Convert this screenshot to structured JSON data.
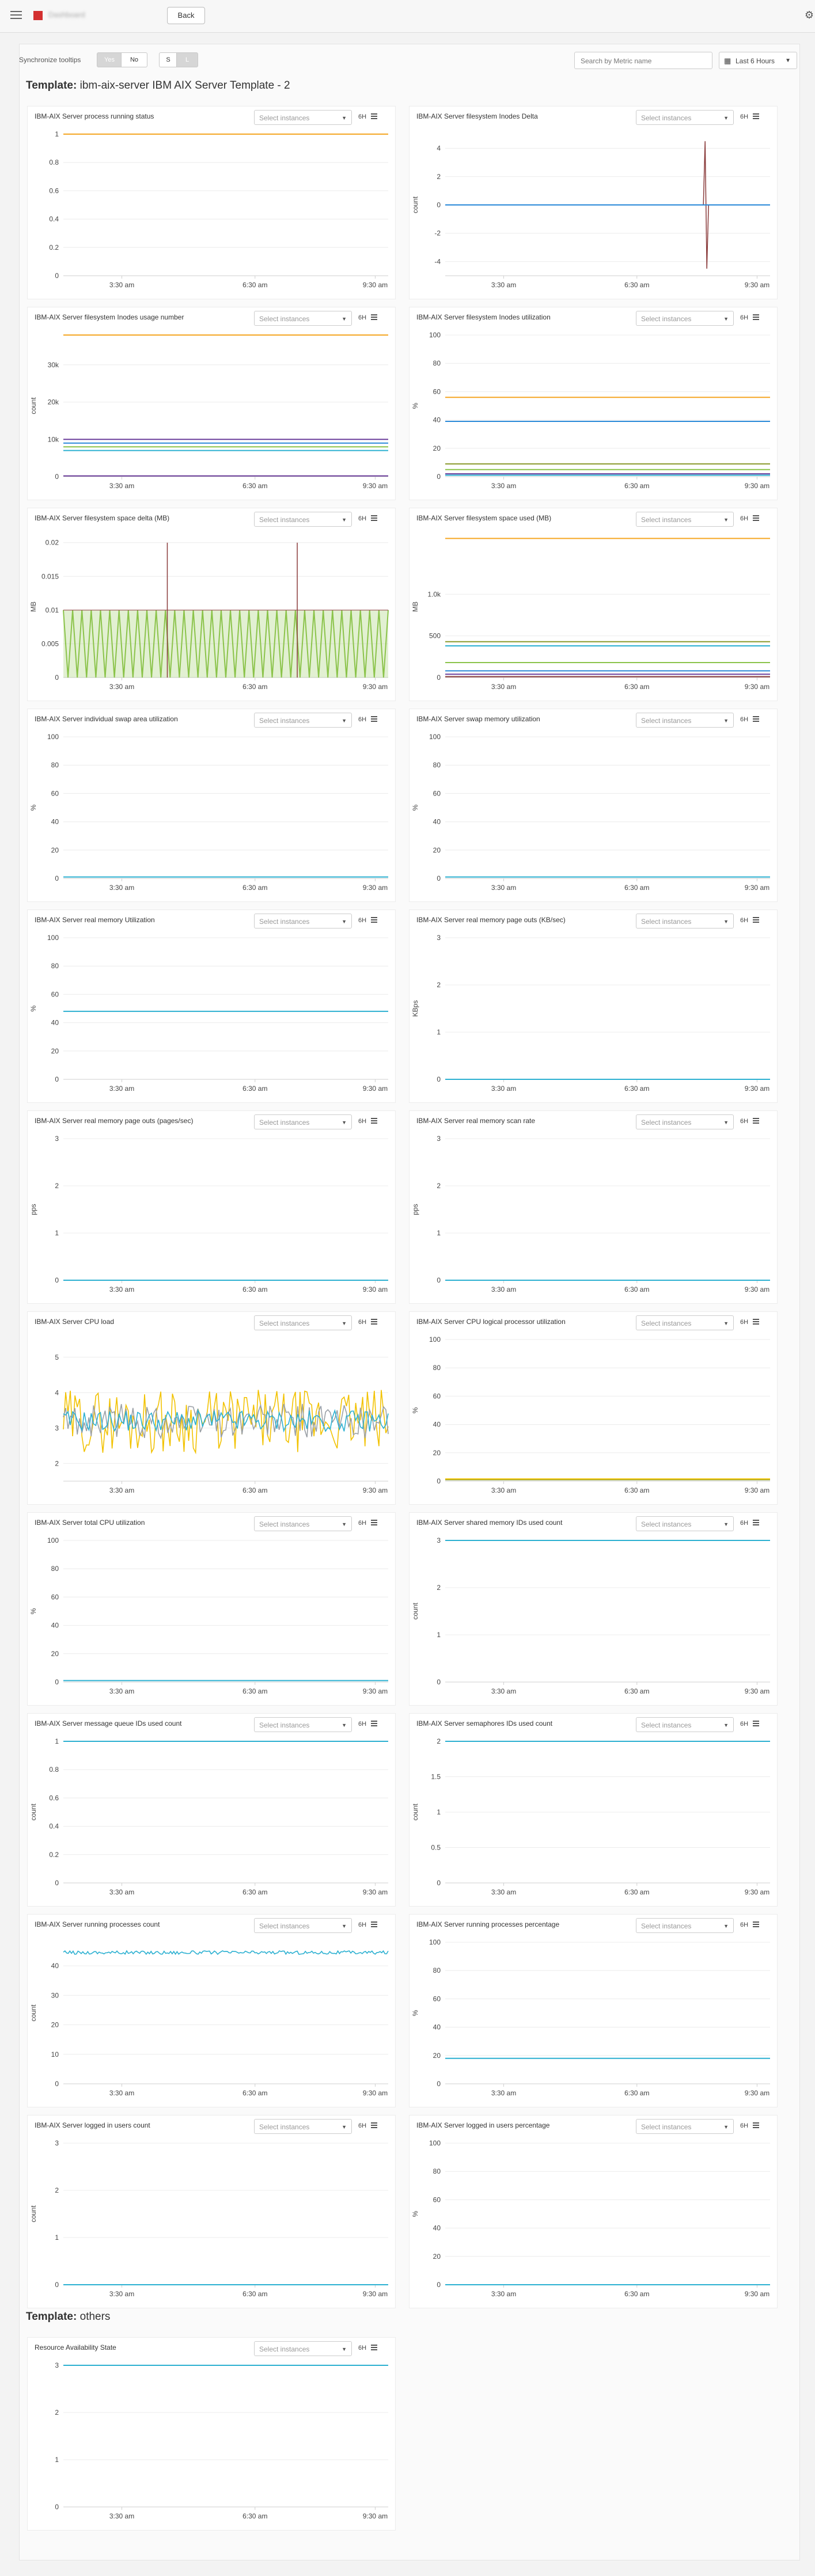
{
  "topbar": {
    "app_name": "Dashboard",
    "back_label": "Back"
  },
  "toolbar": {
    "sync_label": "Synchronize tooltips",
    "yes_label": "Yes",
    "no_label": "No",
    "size_s": "S",
    "size_l": "L",
    "search_placeholder": "Search by Metric name",
    "time_range": "Last 6 Hours"
  },
  "templates": [
    {
      "prefix": "Template:",
      "name": "ibm-aix-server IBM AIX Server Template - 2"
    },
    {
      "prefix": "Template:",
      "name": "others"
    }
  ],
  "common": {
    "select_placeholder": "Select instances",
    "range": "6H",
    "x_ticks": [
      "3:30 am",
      "6:30 am",
      "9:30 am"
    ]
  },
  "colors": {
    "orange": "#f5a623",
    "blue": "#2a89d8",
    "cyan": "#2bb0d1",
    "green": "#8bc34a",
    "olive": "#8a9a2b",
    "purple": "#6a3d9a",
    "maroon": "#8a3b3b",
    "gold": "#f2c200",
    "grey": "#9aa0a6"
  },
  "charts": [
    {
      "title": "IBM-AIX Server process running status",
      "ylabel": "",
      "yticks": [
        "1",
        "0.8",
        "0.6",
        "0.4",
        "0.2",
        "0"
      ],
      "chart_data": {
        "type": "line",
        "ylim": [
          0,
          1
        ],
        "series": [
          {
            "color": "#f5a623",
            "values": [
              1,
              1
            ]
          }
        ]
      }
    },
    {
      "title": "IBM-AIX Server filesystem Inodes Delta",
      "ylabel": "count",
      "yticks": [
        "4",
        "2",
        "0",
        "-2",
        "-4"
      ],
      "chart_data": {
        "type": "line",
        "ylim": [
          -5,
          5
        ],
        "series": [
          {
            "color": "#8a3b3b",
            "spike_at": 0.8,
            "values": [
              0,
              0,
              4.5,
              -4.5,
              0,
              0
            ]
          },
          {
            "color": "#2a89d8",
            "values": [
              0,
              0
            ]
          }
        ]
      }
    },
    {
      "title": "IBM-AIX Server filesystem Inodes usage number",
      "ylabel": "count",
      "yticks": [
        "30k",
        "20k",
        "10k",
        "0"
      ],
      "chart_data": {
        "type": "line",
        "ylim": [
          0,
          38000
        ],
        "series": [
          {
            "color": "#f5a623",
            "values": [
              38000,
              38000
            ]
          },
          {
            "color": "#6a3d9a",
            "values": [
              10000,
              10000
            ]
          },
          {
            "color": "#2a89d8",
            "values": [
              9000,
              9000
            ]
          },
          {
            "color": "#8bc34a",
            "values": [
              8000,
              8000
            ]
          },
          {
            "color": "#2bb0d1",
            "values": [
              7000,
              7000
            ]
          },
          {
            "color": "#6a3d9a",
            "values": [
              200,
              200
            ]
          }
        ]
      }
    },
    {
      "title": "IBM-AIX Server filesystem Inodes utilization",
      "ylabel": "%",
      "yticks": [
        "100",
        "80",
        "60",
        "40",
        "20",
        "0"
      ],
      "chart_data": {
        "type": "line",
        "ylim": [
          0,
          100
        ],
        "series": [
          {
            "color": "#f5a623",
            "values": [
              56,
              56
            ]
          },
          {
            "color": "#2a89d8",
            "values": [
              39,
              39
            ]
          },
          {
            "color": "#8a9a2b",
            "values": [
              9,
              9
            ]
          },
          {
            "color": "#8bc34a",
            "values": [
              5,
              5
            ]
          },
          {
            "color": "#6a3d9a",
            "values": [
              2,
              2
            ]
          },
          {
            "color": "#2bb0d1",
            "values": [
              1,
              1
            ]
          }
        ]
      }
    },
    {
      "title": "IBM-AIX Server filesystem space delta (MB)",
      "ylabel": "MB",
      "yticks": [
        "0.02",
        "0.015",
        "0.01",
        "0.005",
        "0"
      ],
      "chart_data": {
        "type": "line",
        "ylim": [
          0,
          0.021
        ],
        "variant": "comb",
        "series": [
          {
            "color": "#8bc34a",
            "peak": 0.01
          },
          {
            "color": "#8a3b3b",
            "spikes": [
              0.02,
              0.02
            ]
          }
        ]
      }
    },
    {
      "title": "IBM-AIX Server filesystem space used (MB)",
      "ylabel": "MB",
      "yticks": [
        "1.0k",
        "500",
        "0"
      ],
      "chart_data": {
        "type": "line",
        "ylim": [
          0,
          1700
        ],
        "series": [
          {
            "color": "#f5a623",
            "values": [
              1670,
              1670
            ]
          },
          {
            "color": "#8a9a2b",
            "values": [
              430,
              430
            ]
          },
          {
            "color": "#2bb0d1",
            "values": [
              380,
              380
            ]
          },
          {
            "color": "#8bc34a",
            "values": [
              180,
              180
            ]
          },
          {
            "color": "#2a89d8",
            "values": [
              80,
              80
            ]
          },
          {
            "color": "#6a3d9a",
            "values": [
              40,
              40
            ]
          },
          {
            "color": "#8a3b3b",
            "values": [
              10,
              10
            ]
          }
        ]
      }
    },
    {
      "title": "IBM-AIX Server individual swap area utilization",
      "ylabel": "%",
      "yticks": [
        "100",
        "80",
        "60",
        "40",
        "20",
        "0"
      ],
      "chart_data": {
        "type": "line",
        "ylim": [
          0,
          100
        ],
        "series": [
          {
            "color": "#2bb0d1",
            "values": [
              1,
              1
            ]
          }
        ]
      }
    },
    {
      "title": "IBM-AIX Server swap memory utilization",
      "ylabel": "%",
      "yticks": [
        "100",
        "80",
        "60",
        "40",
        "20",
        "0"
      ],
      "chart_data": {
        "type": "line",
        "ylim": [
          0,
          100
        ],
        "series": [
          {
            "color": "#2bb0d1",
            "values": [
              1,
              1
            ]
          }
        ]
      }
    },
    {
      "title": "IBM-AIX Server real memory Utilization",
      "ylabel": "%",
      "yticks": [
        "100",
        "80",
        "60",
        "40",
        "20",
        "0"
      ],
      "chart_data": {
        "type": "line",
        "ylim": [
          0,
          100
        ],
        "series": [
          {
            "color": "#2bb0d1",
            "values": [
              48,
              48
            ]
          }
        ]
      }
    },
    {
      "title": "IBM-AIX Server real memory page outs (KB/sec)",
      "ylabel": "KBps",
      "yticks": [
        "3",
        "2",
        "1",
        "0"
      ],
      "chart_data": {
        "type": "line",
        "ylim": [
          0,
          3
        ],
        "series": [
          {
            "color": "#2bb0d1",
            "values": [
              0,
              0
            ]
          }
        ]
      }
    },
    {
      "title": "IBM-AIX Server real memory page outs (pages/sec)",
      "ylabel": "pps",
      "yticks": [
        "3",
        "2",
        "1",
        "0"
      ],
      "chart_data": {
        "type": "line",
        "ylim": [
          0,
          3
        ],
        "series": [
          {
            "color": "#2bb0d1",
            "values": [
              0,
              0
            ]
          }
        ]
      }
    },
    {
      "title": "IBM-AIX Server real memory scan rate",
      "ylabel": "pps",
      "yticks": [
        "3",
        "2",
        "1",
        "0"
      ],
      "chart_data": {
        "type": "line",
        "ylim": [
          0,
          3
        ],
        "series": [
          {
            "color": "#2bb0d1",
            "values": [
              0,
              0
            ]
          }
        ]
      }
    },
    {
      "title": "IBM-AIX Server CPU load",
      "ylabel": "",
      "yticks": [
        "5",
        "4",
        "3",
        "2"
      ],
      "chart_data": {
        "type": "line",
        "ylim": [
          1.5,
          5.5
        ],
        "variant": "noisy",
        "series": [
          {
            "color": "#f2c200",
            "mean": 3.2,
            "amp": 0.9
          },
          {
            "color": "#9aa0a6",
            "mean": 3.2,
            "amp": 0.5
          },
          {
            "color": "#2bb0d1",
            "mean": 3.2,
            "amp": 0.3
          }
        ]
      }
    },
    {
      "title": "IBM-AIX Server CPU logical processor utilization",
      "ylabel": "%",
      "yticks": [
        "100",
        "80",
        "60",
        "40",
        "20",
        "0"
      ],
      "chart_data": {
        "type": "line",
        "ylim": [
          0,
          100
        ],
        "series": [
          {
            "color": "#8a9a2b",
            "values": [
              1,
              1
            ]
          },
          {
            "color": "#f2c200",
            "values": [
              1.5,
              1.5
            ]
          }
        ]
      }
    },
    {
      "title": "IBM-AIX Server total CPU utilization",
      "ylabel": "%",
      "yticks": [
        "100",
        "80",
        "60",
        "40",
        "20",
        "0"
      ],
      "chart_data": {
        "type": "line",
        "ylim": [
          0,
          100
        ],
        "series": [
          {
            "color": "#2bb0d1",
            "values": [
              1,
              1
            ]
          }
        ]
      }
    },
    {
      "title": "IBM-AIX Server shared memory IDs used count",
      "ylabel": "count",
      "yticks": [
        "3",
        "2",
        "1",
        "0"
      ],
      "chart_data": {
        "type": "line",
        "ylim": [
          0,
          3
        ],
        "series": [
          {
            "color": "#2bb0d1",
            "values": [
              3,
              3
            ]
          }
        ]
      }
    },
    {
      "title": "IBM-AIX Server message queue IDs used count",
      "ylabel": "count",
      "yticks": [
        "1",
        "0.8",
        "0.6",
        "0.4",
        "0.2",
        "0"
      ],
      "chart_data": {
        "type": "line",
        "ylim": [
          0,
          1
        ],
        "series": [
          {
            "color": "#2bb0d1",
            "values": [
              1,
              1
            ]
          }
        ]
      }
    },
    {
      "title": "IBM-AIX Server semaphores IDs used count",
      "ylabel": "count",
      "yticks": [
        "2",
        "1.5",
        "1",
        "0.5",
        "0"
      ],
      "chart_data": {
        "type": "line",
        "ylim": [
          0,
          2
        ],
        "series": [
          {
            "color": "#2bb0d1",
            "values": [
              2,
              2
            ]
          }
        ]
      }
    },
    {
      "title": "IBM-AIX Server running processes count",
      "ylabel": "count",
      "yticks": [
        "40",
        "30",
        "20",
        "10",
        "0"
      ],
      "chart_data": {
        "type": "line",
        "ylim": [
          0,
          48
        ],
        "variant": "jitter",
        "series": [
          {
            "color": "#2bb0d1",
            "mean": 44.5,
            "amp": 0.6
          }
        ]
      }
    },
    {
      "title": "IBM-AIX Server running processes percentage",
      "ylabel": "%",
      "yticks": [
        "100",
        "80",
        "60",
        "40",
        "20",
        "0"
      ],
      "chart_data": {
        "type": "line",
        "ylim": [
          0,
          100
        ],
        "series": [
          {
            "color": "#2bb0d1",
            "values": [
              18,
              18
            ]
          }
        ]
      }
    },
    {
      "title": "IBM-AIX Server logged in users count",
      "ylabel": "count",
      "yticks": [
        "3",
        "2",
        "1",
        "0"
      ],
      "chart_data": {
        "type": "line",
        "ylim": [
          0,
          3
        ],
        "series": [
          {
            "color": "#2bb0d1",
            "values": [
              0,
              0
            ]
          }
        ]
      }
    },
    {
      "title": "IBM-AIX Server logged in users percentage",
      "ylabel": "%",
      "yticks": [
        "100",
        "80",
        "60",
        "40",
        "20",
        "0"
      ],
      "chart_data": {
        "type": "line",
        "ylim": [
          0,
          100
        ],
        "series": [
          {
            "color": "#2bb0d1",
            "values": [
              0,
              0
            ]
          }
        ]
      }
    },
    {
      "title": "Resource Availability State",
      "ylabel": "",
      "yticks": [
        "3",
        "2",
        "1",
        "0"
      ],
      "chart_data": {
        "type": "line",
        "ylim": [
          0,
          3
        ],
        "series": [
          {
            "color": "#2bb0d1",
            "values": [
              3,
              3
            ]
          }
        ]
      }
    }
  ]
}
